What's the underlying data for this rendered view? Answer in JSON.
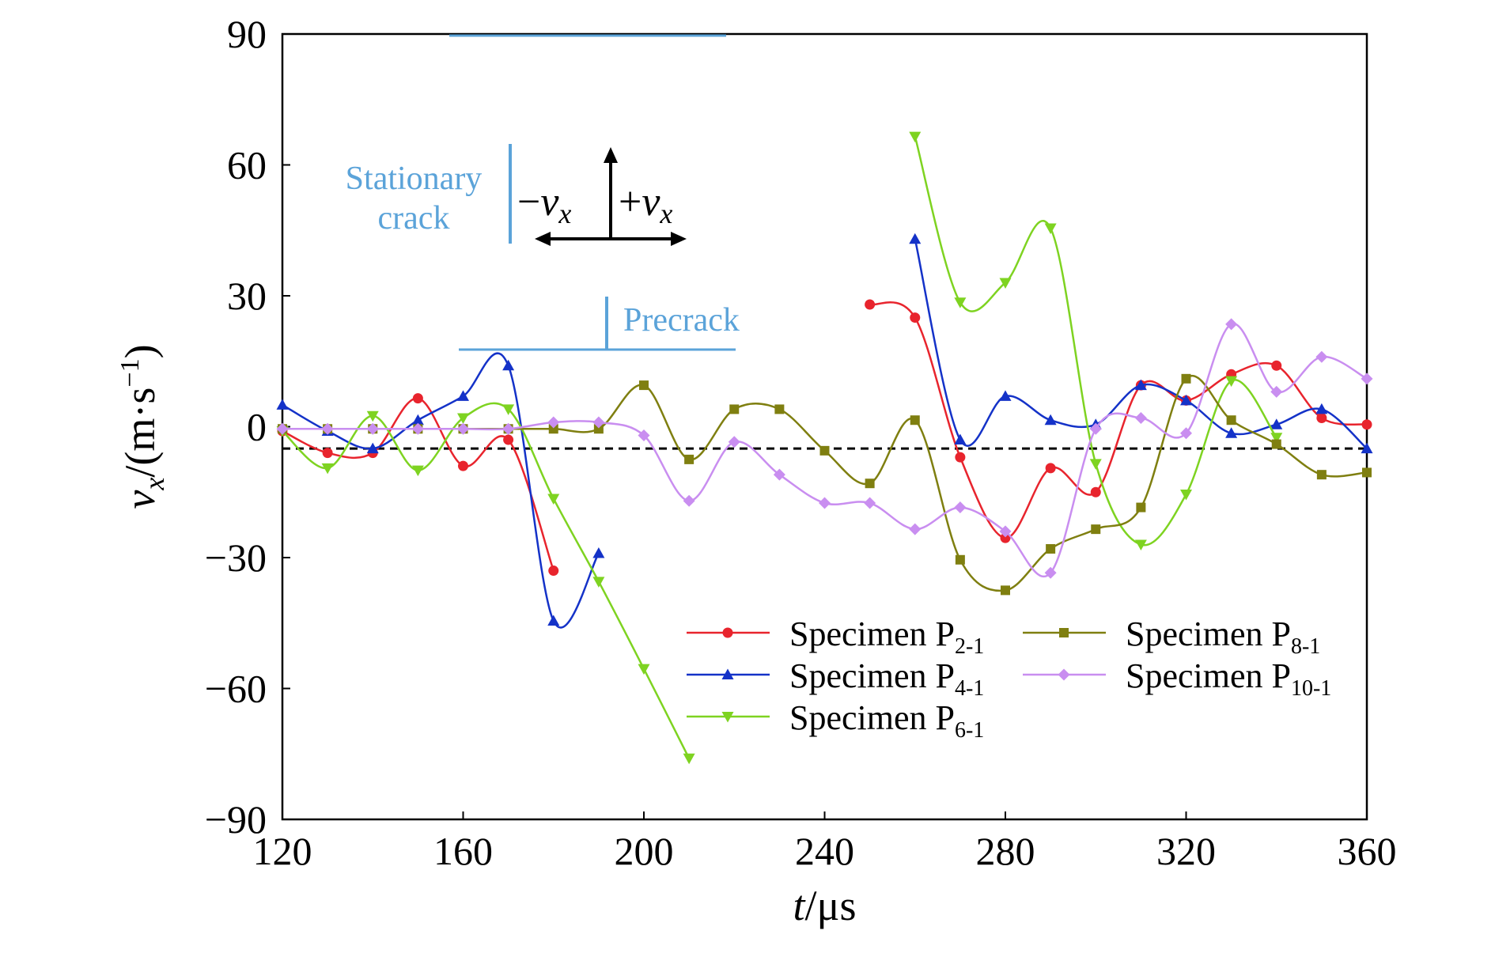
{
  "chart_data": {
    "type": "scatter",
    "x_axis": {
      "label_italic": "t",
      "label_rest": "/μs",
      "min": 120,
      "max": 360,
      "ticks": [
        120,
        160,
        200,
        240,
        280,
        320,
        360
      ],
      "tick_labels": [
        "120",
        "160",
        "200",
        "240",
        "280",
        "320",
        "360"
      ]
    },
    "y_axis": {
      "label_italic": "v",
      "label_sub": "x",
      "label_rest": "/(m·s",
      "label_sup": "−1",
      "label_close": ")",
      "min": -90,
      "max": 90,
      "ticks": [
        -90,
        -60,
        -30,
        0,
        30,
        60,
        90
      ],
      "tick_labels": [
        "−90",
        "−60",
        "−30",
        "0",
        "30",
        "60",
        "90"
      ]
    },
    "grid": false,
    "legend_position": "bottom-right",
    "reference_line": {
      "y": -5,
      "style": "dashed",
      "color": "#000000"
    },
    "series": [
      {
        "name_main": "Specimen P",
        "name_sub": "2-1",
        "color": "#e8242d",
        "marker": "circle",
        "x": [
          120,
          130,
          140,
          150,
          160,
          170,
          180
        ],
        "y": [
          -1,
          -6,
          -6,
          6.5,
          -9,
          -3,
          -33
        ],
        "x2": [
          250,
          260,
          270,
          280,
          290,
          300,
          310,
          320,
          330,
          340,
          350,
          360
        ],
        "y2": [
          28,
          25,
          -7,
          -25.5,
          -9.5,
          -15,
          9.5,
          6,
          12,
          14,
          2,
          0.5
        ]
      },
      {
        "name_main": "Specimen P",
        "name_sub": "4-1",
        "color": "#1432c8",
        "marker": "triangle-up",
        "x": [
          120,
          130,
          140,
          150,
          160,
          170,
          180,
          190
        ],
        "y": [
          5,
          -1,
          -5,
          1.5,
          7,
          14,
          -44.5,
          -29
        ],
        "x2": [
          260,
          270,
          280,
          290,
          300,
          310,
          320,
          330,
          340,
          350,
          360
        ],
        "y2": [
          43,
          -3,
          7,
          1.5,
          0.5,
          9.5,
          6,
          -1.5,
          0.5,
          4,
          -5
        ]
      },
      {
        "name_main": "Specimen P",
        "name_sub": "6-1",
        "color": "#7ed321",
        "marker": "triangle-down",
        "x": [
          120,
          130,
          140,
          150,
          160,
          170,
          180,
          190,
          200,
          210
        ],
        "y": [
          -1,
          -9.5,
          2.5,
          -10,
          2,
          4,
          -16.5,
          -35.5,
          -55.5,
          -76
        ],
        "x2": [
          260,
          270,
          280,
          290,
          300,
          310,
          320,
          330,
          340
        ],
        "y2": [
          66.5,
          28.5,
          33,
          45.5,
          -8.5,
          -27,
          -15.5,
          10.5,
          -2.5
        ]
      },
      {
        "name_main": "Specimen P",
        "name_sub": "8-1",
        "color": "#7f7f10",
        "marker": "square",
        "x": [
          120,
          130,
          140,
          150,
          160,
          170,
          180,
          190,
          200,
          210,
          220,
          230,
          240,
          250,
          260,
          270,
          280,
          290,
          300,
          310,
          320,
          330,
          340,
          350,
          360
        ],
        "y": [
          -0.5,
          -0.5,
          -0.5,
          -0.5,
          -0.5,
          -0.5,
          -0.5,
          -0.5,
          9.5,
          -7.5,
          4,
          4,
          -5.5,
          -13,
          1.5,
          -30.5,
          -37.5,
          -28,
          -23.5,
          -18.5,
          11,
          1.5,
          -4,
          -11,
          -10.5
        ]
      },
      {
        "name_main": "Specimen P",
        "name_sub": "10-1",
        "color": "#c98ef0",
        "marker": "diamond",
        "x": [
          120,
          130,
          140,
          150,
          160,
          170,
          180,
          190,
          200,
          210,
          220,
          230,
          240,
          250,
          260,
          270,
          280,
          290,
          300,
          310,
          320,
          330,
          340,
          350,
          360
        ],
        "y": [
          -0.5,
          -0.5,
          -0.5,
          -0.5,
          -0.5,
          -0.5,
          1,
          1,
          -2,
          -17,
          -3.5,
          -11,
          -17.5,
          -17.5,
          -23.5,
          -18.5,
          -24,
          -33.5,
          -0.5,
          2,
          -1.5,
          23.5,
          8,
          16,
          11
        ]
      }
    ],
    "annotations": {
      "stationary_crack_line1": "Stationary",
      "stationary_crack_line2": "crack",
      "neg_v_sign": "−",
      "pos_v_sign": "+",
      "v_italic": "v",
      "v_sub": "x",
      "precrack": "Precrack",
      "annotation_color": "#5ba3d9"
    }
  }
}
